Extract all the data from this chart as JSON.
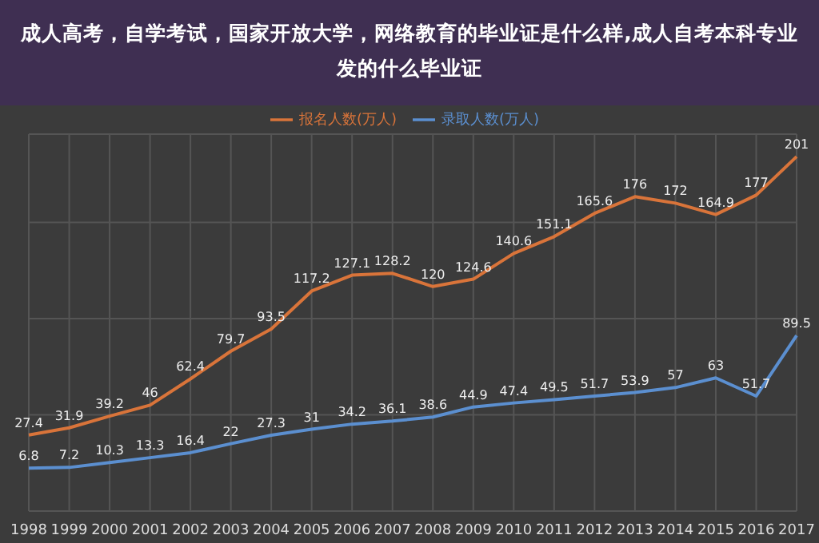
{
  "chart_data": {
    "type": "line",
    "title": "成人高考，自学考试，国家开放大学，网络教育的毕业证是什么样,成人自考本科专业发的什么毕业证",
    "categories": [
      "1998",
      "1999",
      "2000",
      "2001",
      "2002",
      "2003",
      "2004",
      "2005",
      "2006",
      "2007",
      "2008",
      "2009",
      "2010",
      "2011",
      "2012",
      "2013",
      "2014",
      "2015",
      "2016",
      "2017"
    ],
    "series": [
      {
        "name": "报名人数(万人)",
        "color": "#d9743a",
        "values": [
          27.4,
          31.9,
          39.2,
          46,
          62.4,
          79.7,
          93.5,
          117.2,
          127.1,
          128.2,
          120,
          124.6,
          140.6,
          151.1,
          165.6,
          176,
          172,
          164.9,
          177,
          201
        ]
      },
      {
        "name": "录取人数(万人)",
        "color": "#5b8fd0",
        "values": [
          6.8,
          7.2,
          10.3,
          13.3,
          16.4,
          22,
          27.3,
          31,
          34.2,
          36.1,
          38.6,
          44.9,
          47.4,
          49.5,
          51.7,
          53.9,
          57,
          63,
          51.7,
          89.5
        ]
      }
    ],
    "data_labels": true,
    "grid": true,
    "legend": "top"
  }
}
